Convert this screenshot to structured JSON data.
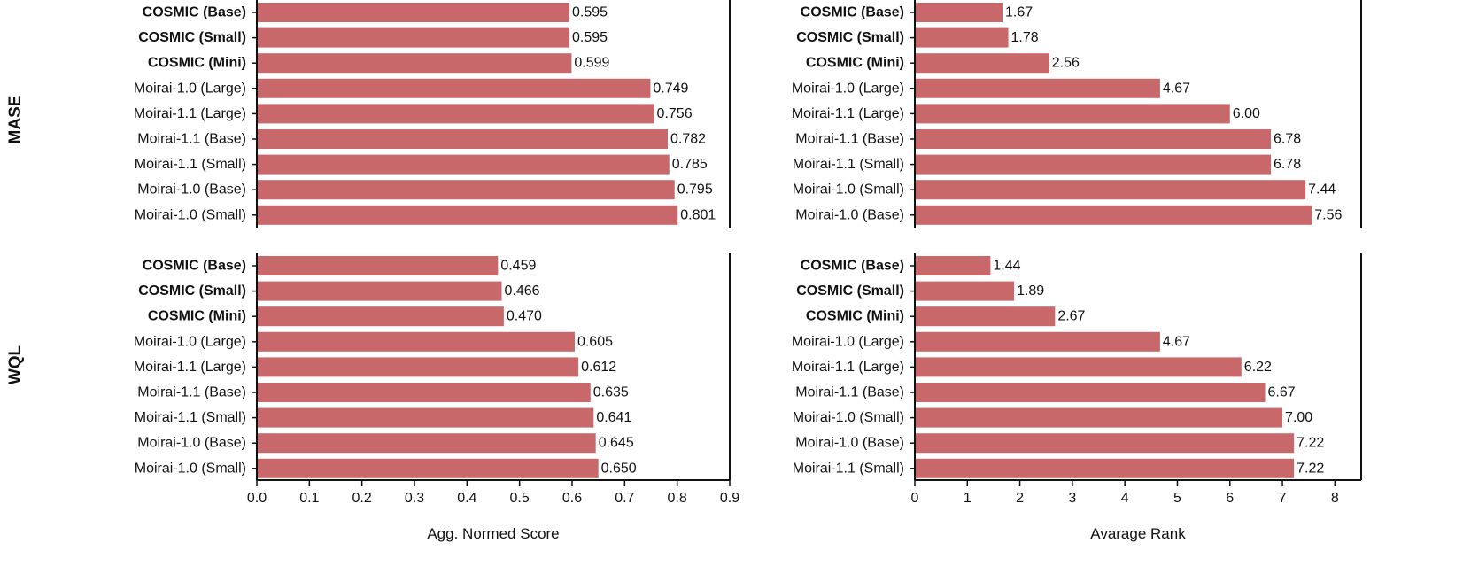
{
  "chart_data": [
    {
      "type": "bar",
      "orientation": "horizontal",
      "row_label": "MASE",
      "xlabel": "",
      "xlim": [
        0,
        0.9
      ],
      "xticks": [
        "0.0",
        "0.1",
        "0.2",
        "0.3",
        "0.4",
        "0.5",
        "0.6",
        "0.7",
        "0.8",
        "0.9"
      ],
      "categories": [
        "COSMIC (Base)",
        "COSMIC (Small)",
        "COSMIC (Mini)",
        "Moirai-1.0 (Large)",
        "Moirai-1.1 (Large)",
        "Moirai-1.1 (Base)",
        "Moirai-1.1 (Small)",
        "Moirai-1.0 (Base)",
        "Moirai-1.0 (Small)"
      ],
      "values": [
        0.595,
        0.595,
        0.599,
        0.749,
        0.756,
        0.782,
        0.785,
        0.795,
        0.801
      ],
      "labels": [
        "0.595",
        "0.595",
        "0.599",
        "0.749",
        "0.756",
        "0.782",
        "0.785",
        "0.795",
        "0.801"
      ],
      "bold_categories": [
        "COSMIC (Base)",
        "COSMIC (Small)",
        "COSMIC (Mini)"
      ]
    },
    {
      "type": "bar",
      "orientation": "horizontal",
      "row_label": "MASE",
      "xlabel": "",
      "xlim": [
        0,
        8.5
      ],
      "xticks": [
        "0",
        "1",
        "2",
        "3",
        "4",
        "5",
        "6",
        "7",
        "8"
      ],
      "categories": [
        "COSMIC (Base)",
        "COSMIC (Small)",
        "COSMIC (Mini)",
        "Moirai-1.0 (Large)",
        "Moirai-1.1 (Large)",
        "Moirai-1.1 (Base)",
        "Moirai-1.1 (Small)",
        "Moirai-1.0 (Small)",
        "Moirai-1.0 (Base)"
      ],
      "values": [
        1.67,
        1.78,
        2.56,
        4.67,
        6.0,
        6.78,
        6.78,
        7.44,
        7.56
      ],
      "labels": [
        "1.67",
        "1.78",
        "2.56",
        "4.67",
        "6.00",
        "6.78",
        "6.78",
        "7.44",
        "7.56"
      ],
      "bold_categories": [
        "COSMIC (Base)",
        "COSMIC (Small)",
        "COSMIC (Mini)"
      ]
    },
    {
      "type": "bar",
      "orientation": "horizontal",
      "row_label": "WQL",
      "xlabel": "Agg. Normed Score",
      "xlim": [
        0,
        0.9
      ],
      "xticks": [
        "0.0",
        "0.1",
        "0.2",
        "0.3",
        "0.4",
        "0.5",
        "0.6",
        "0.7",
        "0.8",
        "0.9"
      ],
      "categories": [
        "COSMIC (Base)",
        "COSMIC (Small)",
        "COSMIC (Mini)",
        "Moirai-1.0 (Large)",
        "Moirai-1.1 (Large)",
        "Moirai-1.1 (Base)",
        "Moirai-1.1 (Small)",
        "Moirai-1.0 (Base)",
        "Moirai-1.0 (Small)"
      ],
      "values": [
        0.459,
        0.466,
        0.47,
        0.605,
        0.612,
        0.635,
        0.641,
        0.645,
        0.65
      ],
      "labels": [
        "0.459",
        "0.466",
        "0.470",
        "0.605",
        "0.612",
        "0.635",
        "0.641",
        "0.645",
        "0.650"
      ],
      "bold_categories": [
        "COSMIC (Base)",
        "COSMIC (Small)",
        "COSMIC (Mini)"
      ]
    },
    {
      "type": "bar",
      "orientation": "horizontal",
      "row_label": "WQL",
      "xlabel": "Avarage Rank",
      "xlim": [
        0,
        8.5
      ],
      "xticks": [
        "0",
        "1",
        "2",
        "3",
        "4",
        "5",
        "6",
        "7",
        "8"
      ],
      "categories": [
        "COSMIC (Base)",
        "COSMIC (Small)",
        "COSMIC (Mini)",
        "Moirai-1.0 (Large)",
        "Moirai-1.1 (Large)",
        "Moirai-1.1 (Base)",
        "Moirai-1.0 (Small)",
        "Moirai-1.0 (Base)",
        "Moirai-1.1 (Small)"
      ],
      "values": [
        1.44,
        1.89,
        2.67,
        4.67,
        6.22,
        6.67,
        7.0,
        7.22,
        7.22
      ],
      "labels": [
        "1.44",
        "1.89",
        "2.67",
        "4.67",
        "6.22",
        "6.67",
        "7.00",
        "7.22",
        "7.22"
      ],
      "bold_categories": [
        "COSMIC (Base)",
        "COSMIC (Small)",
        "COSMIC (Mini)"
      ]
    }
  ],
  "row_labels": [
    "MASE",
    "WQL"
  ],
  "colors": {
    "bar": "#c8686b",
    "axis": "#111111"
  }
}
